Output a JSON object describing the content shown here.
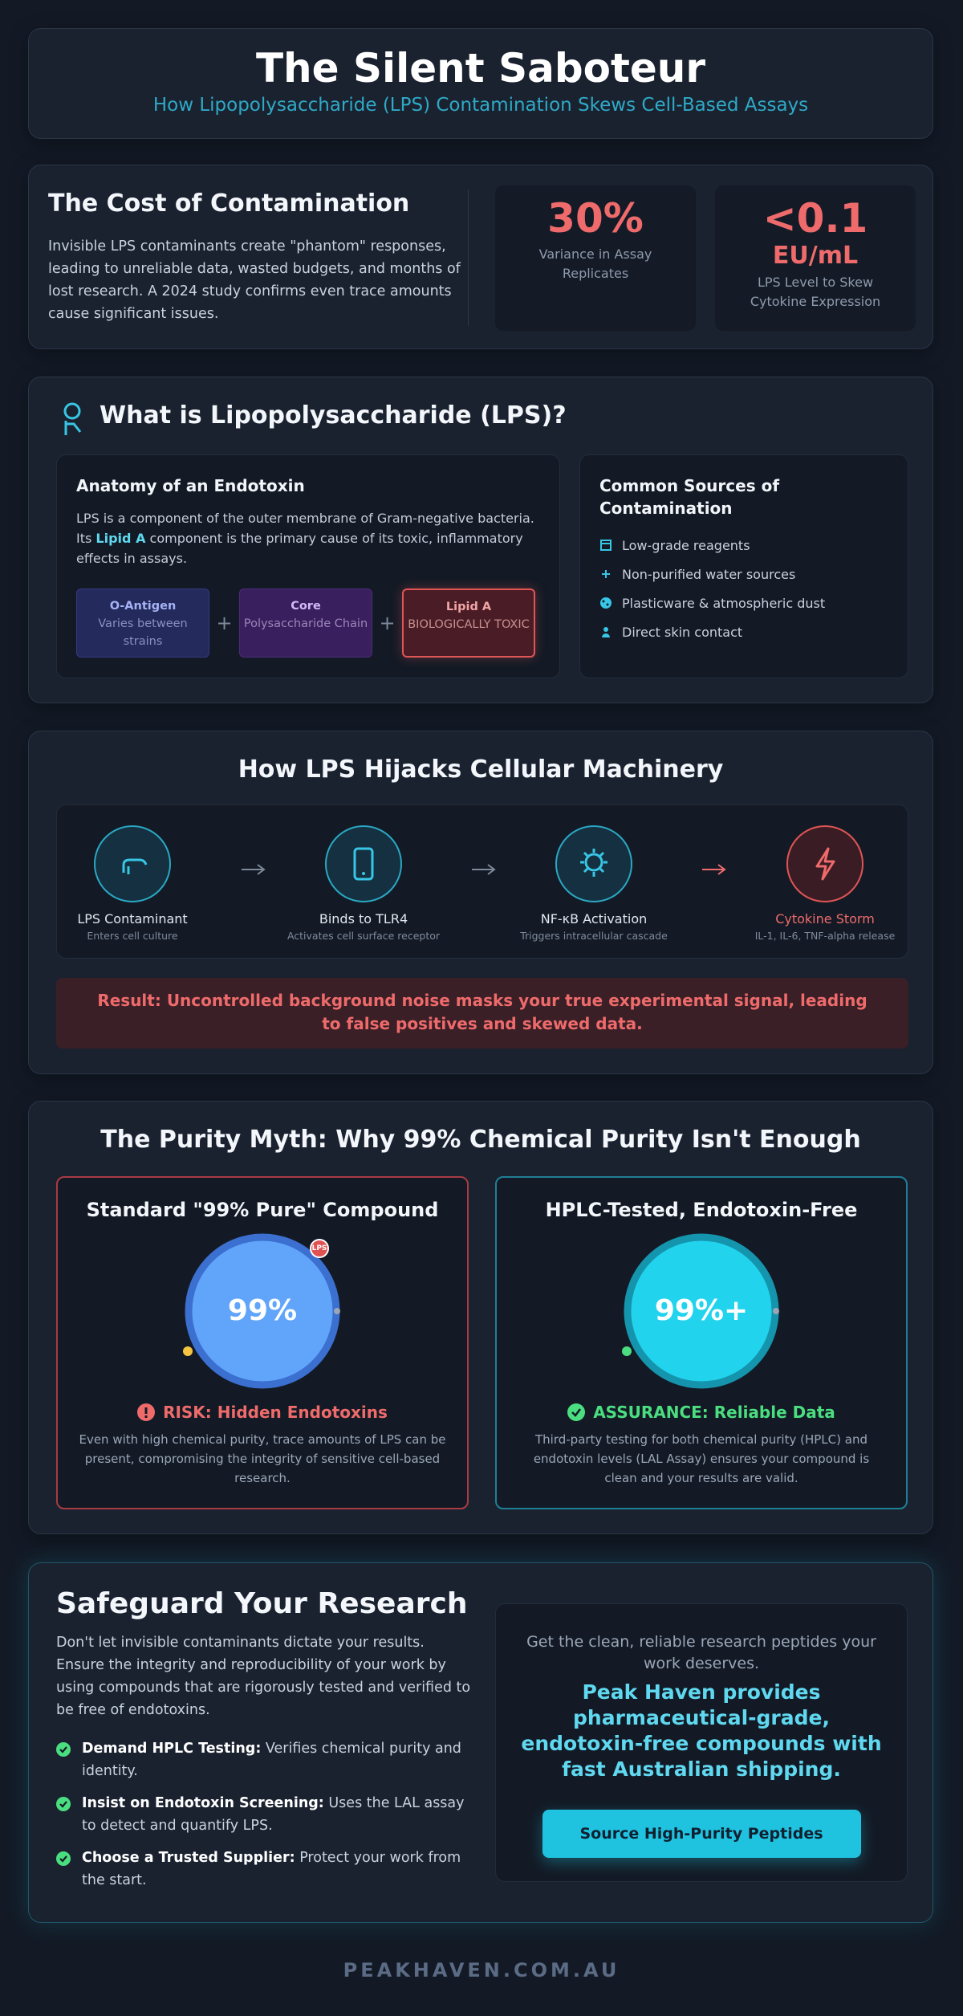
{
  "header": {
    "title": "The Silent Saboteur",
    "subtitle": "How Lipopolysaccharide (LPS) Contamination Skews Cell-Based Assays"
  },
  "cost": {
    "title": "The Cost of Contamination",
    "text": "Invisible LPS contaminants create \"phantom\" responses, leading to unreliable data, wasted budgets, and months of lost research. A 2024 study confirms even trace amounts cause significant issues.",
    "stats": [
      {
        "value": "30%",
        "label": "Variance in Assay Replicates"
      },
      {
        "value": "<0.1",
        "unit": "EU/mL",
        "label": "LPS Level to Skew Cytokine Expression"
      }
    ]
  },
  "lps": {
    "title": "What is Lipopolysaccharide (LPS)?",
    "anatomy": {
      "title": "Anatomy of an Endotoxin",
      "text_before": "LPS is a component of the outer membrane of Gram-negative bacteria. Its ",
      "highlight": "Lipid A",
      "text_after": " component is the primary cause of its toxic, inflammatory effects in assays.",
      "joiner": "+",
      "parts": [
        {
          "name": "O-Antigen",
          "desc": "Varies between strains"
        },
        {
          "name": "Core",
          "desc": "Polysaccharide Chain"
        },
        {
          "name": "Lipid A",
          "desc": "BIOLOGICALLY TOXIC"
        }
      ]
    },
    "sources": {
      "title": "Common Sources of Contamination",
      "items": [
        "Low-grade reagents",
        "Non-purified water sources",
        "Plasticware & atmospheric dust",
        "Direct skin contact"
      ]
    }
  },
  "pathway": {
    "title": "How LPS Hijacks Cellular Machinery",
    "steps": [
      {
        "name": "LPS Contaminant",
        "desc": "Enters cell culture"
      },
      {
        "name": "Binds to TLR4",
        "desc": "Activates cell surface receptor"
      },
      {
        "name": "NF-κB Activation",
        "desc": "Triggers intracellular cascade"
      },
      {
        "name": "Cytokine Storm",
        "desc": "IL-1, IL-6, TNF-alpha release"
      }
    ],
    "result": "Result: Uncontrolled background noise masks your true experimental signal, leading to false positives and skewed data."
  },
  "purity": {
    "title": "The Purity Myth: Why 99% Chemical Purity Isn't Enough",
    "standard": {
      "title": "Standard \"99% Pure\" Compound",
      "value": "99%",
      "badge": "LPS",
      "status": "RISK: Hidden Endotoxins",
      "text": "Even with high chemical purity, trace amounts of LPS can be present, compromising the integrity of sensitive cell-based research."
    },
    "tested": {
      "title": "HPLC-Tested, Endotoxin-Free",
      "value": "99%+",
      "status": "ASSURANCE: Reliable Data",
      "text": "Third-party testing for both chemical purity (HPLC) and endotoxin levels (LAL Assay) ensures your compound is clean and your results are valid."
    }
  },
  "safeguard": {
    "title": "Safeguard Your Research",
    "text": "Don't let invisible contaminants dictate your results. Ensure the integrity and reproducibility of your work by using compounds that are rigorously tested and verified to be free of endotoxins.",
    "checklist": [
      {
        "bold": "Demand HPLC Testing:",
        "text": " Verifies chemical purity and identity."
      },
      {
        "bold": "Insist on Endotoxin Screening:",
        "text": " Uses the LAL assay to detect and quantify LPS."
      },
      {
        "bold": "Choose a Trusted Supplier:",
        "text": " Protect your work from the start."
      }
    ],
    "cta": {
      "lead": "Get the clean, reliable research peptides your work deserves.",
      "pitch": "Peak Haven provides pharmaceutical-grade, endotoxin-free compounds with fast Australian shipping.",
      "button": "Source High-Purity Peptides"
    }
  },
  "footer": "PEAKHAVEN.COM.AU"
}
